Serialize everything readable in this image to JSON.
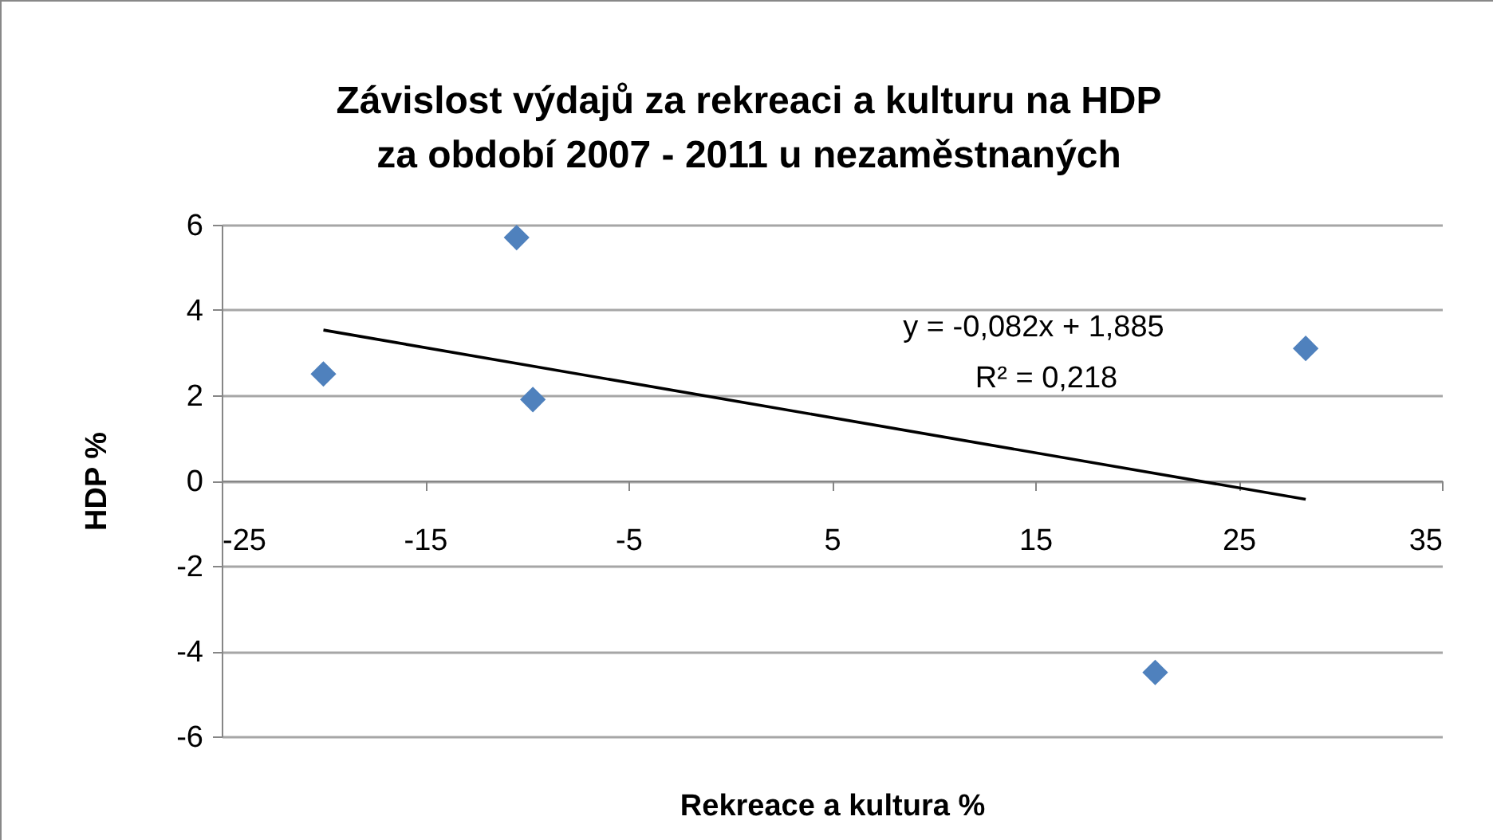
{
  "chart_data": {
    "type": "scatter",
    "title": "Závislost výdajů za rekreaci a kulturu na HDP\nza období 2007 - 2011 u nezaměstnaných",
    "xlabel": "Rekreace a kultura %",
    "ylabel": "HDP %",
    "x": [
      -20.0,
      -10.5,
      -9.7,
      20.9,
      28.3
    ],
    "series": [
      {
        "color": "#4f81bd",
        "marker": "diamond",
        "values": [
          2.5,
          5.7,
          1.9,
          -4.5,
          3.1
        ]
      },
      {
        "type": "line",
        "color": "#000000",
        "x": [
          -20.0,
          28.3
        ],
        "values": [
          3.53,
          -0.44
        ]
      }
    ],
    "annotations": [
      "y = -0,082x + 1,885",
      "R² = 0,218"
    ],
    "xlim": [
      -25,
      35
    ],
    "xticks": [
      -25,
      -15,
      -5,
      5,
      15,
      25,
      35
    ],
    "ylim": [
      -6,
      6
    ],
    "yticks": [
      -6,
      -4,
      -2,
      0,
      2,
      4,
      6
    ],
    "grid": "y"
  }
}
